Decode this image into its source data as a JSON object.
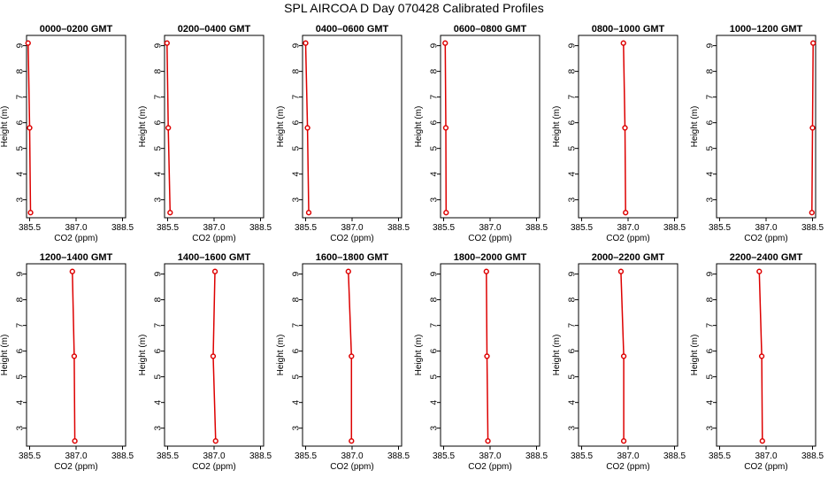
{
  "title": "SPL AIRCOA D  Day 070428  Calibrated Profiles",
  "colors": {
    "series": "#dd0000",
    "axis": "#000000"
  },
  "chart_data": {
    "type": "line",
    "xlabel": "CO2 (ppm)",
    "ylabel": "Height (m)",
    "xlim": [
      385.4,
      388.6
    ],
    "ylim": [
      2.3,
      9.4
    ],
    "xticks": [
      385.5,
      387.0,
      388.5
    ],
    "xtick_labels": [
      "385.5",
      "387.0",
      "388.5"
    ],
    "yticks": [
      3,
      4,
      5,
      6,
      7,
      8,
      9
    ],
    "yticks_labels": [
      "3",
      "4",
      "5",
      "6",
      "7",
      "8",
      "9"
    ],
    "heights": [
      9.1,
      5.8,
      2.5
    ],
    "panels": [
      {
        "title": "0000–0200 GMT",
        "co2": [
          385.45,
          385.5,
          385.53
        ]
      },
      {
        "title": "0200–0400 GMT",
        "co2": [
          385.48,
          385.52,
          385.58
        ]
      },
      {
        "title": "0400–0600 GMT",
        "co2": [
          385.5,
          385.56,
          385.6
        ]
      },
      {
        "title": "0600–0800 GMT",
        "co2": [
          385.55,
          385.57,
          385.58
        ]
      },
      {
        "title": "0800–1000 GMT",
        "co2": [
          386.85,
          386.9,
          386.92
        ]
      },
      {
        "title": "1000–1200 GMT",
        "co2": [
          388.52,
          388.5,
          388.48
        ]
      },
      {
        "title": "1200–1400 GMT",
        "co2": [
          386.88,
          386.94,
          386.96
        ]
      },
      {
        "title": "1400–1600 GMT",
        "co2": [
          387.03,
          386.97,
          387.05
        ]
      },
      {
        "title": "1600–1800 GMT",
        "co2": [
          386.88,
          386.98,
          386.98
        ]
      },
      {
        "title": "1800–2000 GMT",
        "co2": [
          386.88,
          386.9,
          386.93
        ]
      },
      {
        "title": "2000–2200 GMT",
        "co2": [
          386.77,
          386.86,
          386.86
        ]
      },
      {
        "title": "2200–2400 GMT",
        "co2": [
          386.78,
          386.86,
          386.88
        ]
      }
    ]
  }
}
